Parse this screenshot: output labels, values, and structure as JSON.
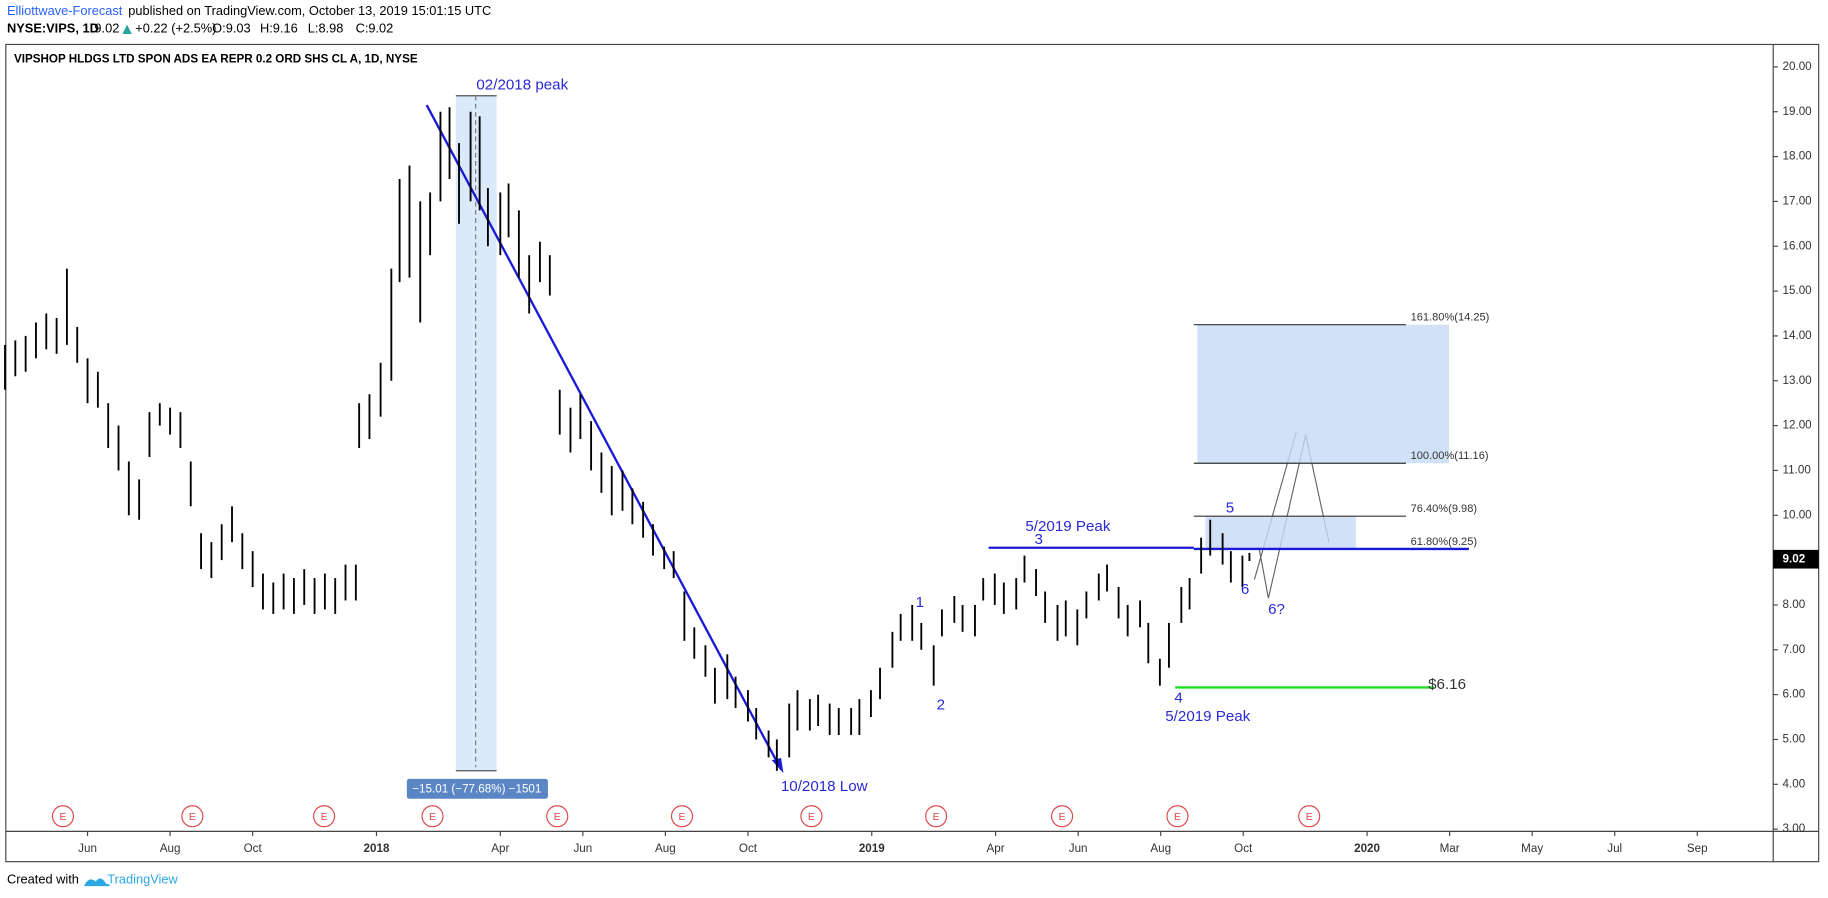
{
  "header": {
    "author": "Elliottwave-Forecast",
    "published": "published on TradingView.com, October 13, 2019 15:01:15 UTC",
    "symbol": "NYSE:VIPS, 1D",
    "last": "9.02",
    "change": "+0.22 (+2.5%)",
    "open": "O:9.03",
    "high": "H:9.16",
    "low": "L:8.98",
    "close": "C:9.02"
  },
  "footer": {
    "created": "Created with",
    "brand": "TradingView"
  },
  "chart_data": {
    "type": "ohlc",
    "title": "VIPSHOP HLDGS LTD SPON ADS EA REPR 0.2 ORD SHS CL A, 1D, NYSE",
    "color": "#000000",
    "x": [
      3.0,
      3.25,
      3.5,
      3.75,
      4.0,
      4.25,
      4.5,
      4.75,
      5.0,
      5.25,
      5.5,
      5.75,
      6.0,
      6.25,
      6.5,
      6.75,
      7.0,
      7.25,
      7.5,
      7.75,
      8.0,
      8.25,
      8.5,
      8.75,
      9.0,
      9.25,
      9.5,
      9.75,
      10.0,
      10.25,
      10.5,
      10.75,
      11.0,
      11.25,
      11.5,
      11.58,
      11.83,
      12.1,
      12.36,
      12.56,
      12.8,
      13.06,
      13.3,
      13.55,
      13.77,
      14.0,
      14.28,
      14.5,
      14.7,
      15.0,
      15.2,
      15.45,
      15.7,
      15.96,
      16.2,
      16.44,
      16.7,
      16.94,
      17.2,
      17.45,
      17.7,
      17.96,
      18.2,
      18.46,
      18.7,
      18.97,
      19.2,
      19.46,
      19.7,
      19.97,
      20.2,
      20.5,
      20.7,
      21.0,
      21.2,
      21.5,
      21.7,
      22.0,
      22.2,
      22.5,
      22.7,
      22.98,
      23.2,
      23.5,
      23.7,
      23.98,
      24.2,
      24.5,
      24.7,
      24.98,
      25.2,
      25.5,
      25.7,
      26.0,
      26.2,
      26.5,
      26.7,
      26.98,
      27.2,
      27.5,
      27.7,
      27.98,
      28.2,
      28.5,
      28.7,
      28.98,
      29.2,
      29.5,
      29.7,
      29.98,
      30.2,
      30.5,
      30.7,
      30.98,
      31.2,
      31.5,
      31.7,
      31.98,
      32.2,
      32.5,
      32.7,
      32.98,
      33.15
    ],
    "high": [
      13.8,
      13.9,
      14.0,
      14.3,
      14.5,
      14.4,
      15.5,
      14.2,
      13.5,
      13.2,
      12.5,
      12.0,
      11.2,
      10.8,
      12.3,
      12.5,
      12.4,
      12.3,
      11.2,
      9.6,
      9.4,
      9.8,
      10.2,
      9.6,
      9.2,
      8.7,
      8.5,
      8.7,
      8.6,
      8.8,
      8.6,
      8.7,
      8.6,
      8.9,
      8.9,
      12.5,
      12.7,
      13.4,
      15.5,
      17.5,
      17.8,
      17.0,
      17.2,
      19.0,
      19.1,
      18.3,
      19.0,
      18.9,
      17.3,
      17.2,
      17.4,
      16.8,
      15.8,
      16.1,
      15.8,
      12.8,
      12.4,
      12.7,
      12.1,
      11.4,
      11.1,
      11.0,
      10.6,
      10.3,
      9.8,
      9.3,
      9.2,
      8.3,
      7.5,
      7.1,
      6.6,
      6.9,
      6.4,
      6.1,
      5.7,
      5.2,
      5.0,
      5.8,
      6.1,
      5.9,
      6.0,
      5.8,
      5.7,
      5.7,
      5.9,
      6.1,
      6.6,
      7.4,
      7.8,
      8.0,
      7.6,
      7.1,
      7.9,
      8.2,
      8.0,
      8.0,
      8.6,
      8.7,
      8.5,
      8.6,
      9.1,
      8.8,
      8.3,
      8.0,
      8.1,
      7.9,
      8.3,
      8.7,
      8.9,
      8.4,
      8.0,
      8.1,
      7.6,
      6.8,
      7.6,
      8.4,
      8.6,
      9.5,
      9.9,
      9.6,
      9.2,
      9.1,
      9.16
    ],
    "low": [
      12.8,
      13.1,
      13.2,
      13.5,
      13.7,
      13.6,
      13.8,
      13.4,
      12.5,
      12.4,
      11.5,
      11.0,
      10.0,
      9.9,
      11.3,
      12.0,
      11.8,
      11.5,
      10.2,
      8.8,
      8.6,
      9.0,
      9.4,
      8.8,
      8.4,
      7.9,
      7.8,
      7.9,
      7.8,
      8.0,
      7.8,
      7.9,
      7.8,
      8.1,
      8.1,
      11.5,
      11.7,
      12.2,
      13.0,
      15.2,
      15.3,
      14.3,
      15.8,
      17.0,
      17.5,
      16.5,
      17.0,
      16.8,
      16.0,
      15.8,
      16.2,
      15.3,
      14.5,
      15.2,
      14.9,
      11.8,
      11.4,
      11.7,
      11.0,
      10.5,
      10.0,
      10.1,
      9.8,
      9.5,
      9.1,
      8.8,
      8.6,
      7.2,
      6.8,
      6.4,
      5.8,
      5.9,
      5.7,
      5.4,
      5.0,
      4.6,
      4.3,
      4.6,
      5.2,
      5.2,
      5.3,
      5.1,
      5.1,
      5.1,
      5.1,
      5.5,
      5.9,
      6.6,
      7.2,
      7.2,
      7.0,
      6.2,
      7.3,
      7.6,
      7.4,
      7.3,
      8.1,
      8.0,
      7.8,
      7.9,
      8.5,
      8.2,
      7.6,
      7.2,
      7.3,
      7.1,
      7.7,
      8.1,
      8.3,
      7.7,
      7.3,
      7.5,
      6.7,
      6.2,
      6.6,
      7.6,
      7.9,
      8.7,
      9.1,
      8.9,
      8.5,
      8.4,
      8.98
    ],
    "xlim": [
      3.02,
      45.84
    ],
    "xticks": [
      {
        "value": 5,
        "label": "Jun"
      },
      {
        "value": 7,
        "label": "Aug"
      },
      {
        "value": 9,
        "label": "Oct"
      },
      {
        "value": 12,
        "label": "2018"
      },
      {
        "value": 15,
        "label": "Apr"
      },
      {
        "value": 17,
        "label": "Jun"
      },
      {
        "value": 19,
        "label": "Aug"
      },
      {
        "value": 21,
        "label": "Oct"
      },
      {
        "value": 24,
        "label": "2019"
      },
      {
        "value": 27,
        "label": "Apr"
      },
      {
        "value": 29,
        "label": "Jun"
      },
      {
        "value": 31,
        "label": "Aug"
      },
      {
        "value": 33,
        "label": "Oct"
      },
      {
        "value": 36,
        "label": "2020"
      },
      {
        "value": 38,
        "label": "Mar"
      },
      {
        "value": 40,
        "label": "May"
      },
      {
        "value": 42,
        "label": "Jul"
      },
      {
        "value": 44,
        "label": "Sep"
      }
    ],
    "ylim": [
      2.95,
      20.5
    ],
    "yticks": [
      {
        "value": 3,
        "label": "3.00"
      },
      {
        "value": 4,
        "label": "4.00"
      },
      {
        "value": 5,
        "label": "5.00"
      },
      {
        "value": 6,
        "label": "6.00"
      },
      {
        "value": 7,
        "label": "7.00"
      },
      {
        "value": 8,
        "label": "8.00"
      },
      {
        "value": 9,
        "label": "9.00"
      },
      {
        "value": 10,
        "label": "10.00"
      },
      {
        "value": 11,
        "label": "11.00"
      },
      {
        "value": 12,
        "label": "12.00"
      },
      {
        "value": 13,
        "label": "13.00"
      },
      {
        "value": 14,
        "label": "14.00"
      },
      {
        "value": 15,
        "label": "15.00"
      },
      {
        "value": 16,
        "label": "16.00"
      },
      {
        "value": 17,
        "label": "17.00"
      },
      {
        "value": 18,
        "label": "18.00"
      },
      {
        "value": 19,
        "label": "19.00"
      },
      {
        "value": 20,
        "label": "20.00"
      }
    ],
    "last_price": 9.02,
    "fib_levels": [
      {
        "value": 14.25,
        "label": "161.80%(14.25)"
      },
      {
        "value": 11.16,
        "label": "100.00%(11.16)"
      },
      {
        "value": 9.98,
        "label": "76.40%(9.98)"
      },
      {
        "value": 9.25,
        "label": "61.80%(9.25)"
      }
    ],
    "support": {
      "value": 6.16,
      "label": "$6.16"
    },
    "measure": "−15.01 (−77.68%) −1501",
    "annotations": [
      "02/2018 peak",
      "10/2018 Low",
      "5/2019 Peak",
      "3",
      "1",
      "2",
      "4",
      "5/2019 Peak",
      "5",
      "6",
      "6?"
    ],
    "events": [
      "E",
      "E",
      "E",
      "E",
      "E",
      "E",
      "E",
      "E",
      "E",
      "E",
      "E"
    ]
  }
}
